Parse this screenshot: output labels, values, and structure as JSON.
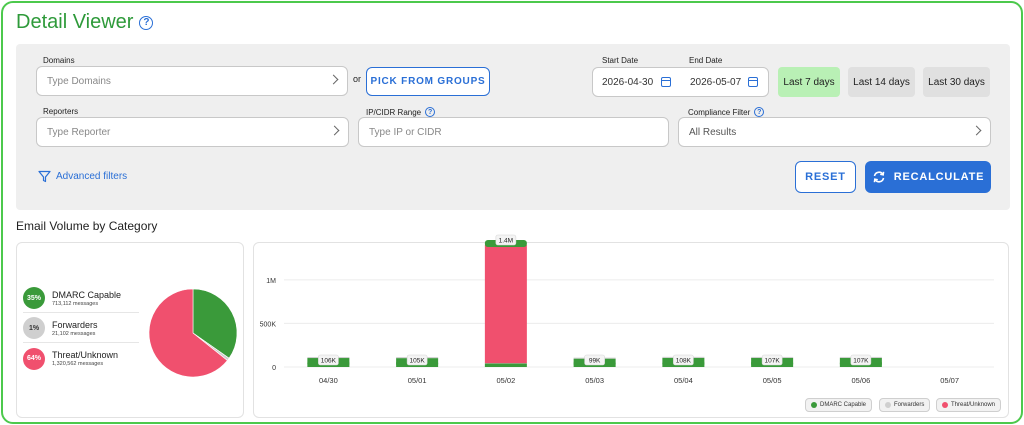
{
  "header": {
    "title": "Detail Viewer"
  },
  "filters": {
    "domains_label": "Domains",
    "domains_placeholder": "Type Domains",
    "or_text": "or",
    "pick_groups_label": "PICK FROM GROUPS",
    "start_date_label": "Start Date",
    "end_date_label": "End Date",
    "start_date": "2026-04-30",
    "end_date": "2026-05-07",
    "ranges": [
      "Last 7 days",
      "Last 14 days",
      "Last 30 days"
    ],
    "active_range": "Last 7 days",
    "reporters_label": "Reporters",
    "reporters_placeholder": "Type Reporter",
    "ip_label": "IP/CIDR Range",
    "ip_placeholder": "Type IP or CIDR",
    "compliance_label": "Compliance Filter",
    "compliance_value": "All Results",
    "advanced_label": "Advanced filters",
    "reset_label": "RESET",
    "recalculate_label": "RECALCULATE"
  },
  "section_title": "Email Volume by Category",
  "summary": [
    {
      "pct": "35%",
      "name": "DMARC Capable",
      "messages": "713,112 messages",
      "color": "#3a9a3a"
    },
    {
      "pct": "1%",
      "name": "Forwarders",
      "messages": "21,102 messages",
      "color": "#cfcfcf"
    },
    {
      "pct": "64%",
      "name": "Threat/Unknown",
      "messages": "1,320,562 messages",
      "color": "#f0506e"
    }
  ],
  "chart_data": [
    {
      "type": "pie",
      "labels": [
        "DMARC Capable",
        "Forwarders",
        "Threat/Unknown"
      ],
      "values": [
        713112,
        21102,
        1320562
      ],
      "colors": [
        "#3a9a3a",
        "#cfcfcf",
        "#f0506e"
      ]
    },
    {
      "type": "bar",
      "stacked": true,
      "categories": [
        "04/30",
        "05/01",
        "05/02",
        "05/03",
        "05/04",
        "05/05",
        "05/06",
        "05/07"
      ],
      "series": [
        {
          "name": "DMARC Capable",
          "color": "#3a9a3a",
          "values": [
            103000,
            102000,
            40000,
            96000,
            105000,
            104000,
            104000,
            0
          ]
        },
        {
          "name": "Forwarders",
          "color": "#cfcfcf",
          "values": [
            3000,
            3000,
            4000,
            3000,
            3000,
            3000,
            3000,
            0
          ]
        },
        {
          "name": "Threat/Unknown",
          "color": "#f0506e",
          "values": [
            0,
            0,
            1356000,
            0,
            0,
            0,
            0,
            0
          ]
        }
      ],
      "totals_labels": [
        "106K",
        "105K",
        "1.4M",
        "99K",
        "108K",
        "107K",
        "107K",
        ""
      ],
      "yticks": [
        0,
        500000,
        1000000
      ],
      "ytick_labels": [
        "0",
        "500K",
        "1M"
      ],
      "ylim": [
        0,
        1400000
      ],
      "grid": true,
      "legend_position": "bottom-right"
    }
  ]
}
